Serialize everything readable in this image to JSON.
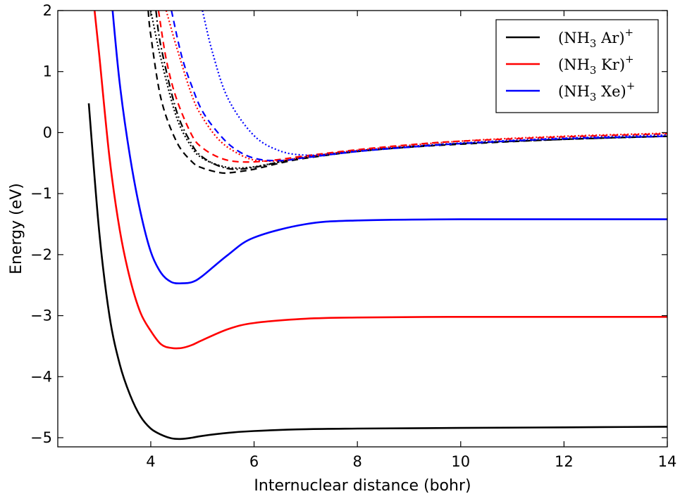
{
  "chart_data": {
    "type": "line",
    "xlabel": "Internuclear distance (bohr)",
    "ylabel": "Energy (eV)",
    "xlim": [
      2.2,
      14
    ],
    "ylim": [
      -5.15,
      2
    ],
    "x_ticks": [
      4,
      6,
      8,
      10,
      12,
      14
    ],
    "y_ticks": [
      2,
      1,
      0,
      -1,
      -2,
      -3,
      -4,
      -5
    ],
    "x_tick_labels": [
      "4",
      "6",
      "8",
      "10",
      "12",
      "14"
    ],
    "y_tick_labels": [
      "2",
      "1",
      "0",
      "−1",
      "−2",
      "−3",
      "−4",
      "−5"
    ],
    "grid": false,
    "legend_position": "top-right",
    "legend": [
      {
        "base": "(NH",
        "sub": "3",
        "mid": " Ar)",
        "sup": "+",
        "color": "#000000"
      },
      {
        "base": "(NH",
        "sub": "3",
        "mid": " Kr)",
        "sup": "+",
        "color": "#ff0000"
      },
      {
        "base": "(NH",
        "sub": "3",
        "mid": " Xe)",
        "sup": "+",
        "color": "#0000ff"
      }
    ],
    "series": [
      {
        "system": "Ar",
        "state": "solid",
        "color": "#000000",
        "dash": "",
        "x": [
          2.8,
          3.0,
          3.2,
          3.4,
          3.6,
          3.8,
          4.0,
          4.2,
          4.4,
          4.6,
          4.8,
          5.0,
          5.5,
          6.0,
          7.0,
          8.0,
          10.0,
          12.0,
          14.0
        ],
        "y": [
          0.48,
          -1.6,
          -3.0,
          -3.8,
          -4.3,
          -4.65,
          -4.85,
          -4.95,
          -5.01,
          -5.02,
          -5.0,
          -4.97,
          -4.92,
          -4.89,
          -4.86,
          -4.85,
          -4.84,
          -4.83,
          -4.82
        ]
      },
      {
        "system": "Kr",
        "state": "solid",
        "color": "#ff0000",
        "dash": "",
        "x": [
          2.9,
          3.0,
          3.2,
          3.4,
          3.6,
          3.8,
          4.0,
          4.2,
          4.4,
          4.6,
          4.8,
          5.0,
          5.5,
          6.0,
          7.0,
          8.0,
          10.0,
          12.0,
          14.0
        ],
        "y": [
          2.1,
          1.3,
          -0.4,
          -1.6,
          -2.4,
          -2.95,
          -3.25,
          -3.47,
          -3.53,
          -3.53,
          -3.48,
          -3.4,
          -3.22,
          -3.12,
          -3.05,
          -3.03,
          -3.02,
          -3.02,
          -3.02
        ]
      },
      {
        "system": "Xe",
        "state": "solid",
        "color": "#0000ff",
        "dash": "",
        "x": [
          3.25,
          3.4,
          3.6,
          3.8,
          4.0,
          4.2,
          4.4,
          4.6,
          4.8,
          5.0,
          5.5,
          6.0,
          7.0,
          8.0,
          10.0,
          12.0,
          14.0
        ],
        "y": [
          2.1,
          0.8,
          -0.4,
          -1.3,
          -1.95,
          -2.3,
          -2.45,
          -2.47,
          -2.45,
          -2.35,
          -2.0,
          -1.72,
          -1.5,
          -1.44,
          -1.42,
          -1.42,
          -1.42
        ]
      },
      {
        "system": "Ar",
        "state": "dashed",
        "color": "#000000",
        "dash": "9,6",
        "x": [
          3.95,
          4.0,
          4.2,
          4.5,
          4.8,
          5.0,
          5.3,
          5.5,
          6.0,
          6.5,
          7.0,
          8.0,
          9.0,
          10.0,
          12.0,
          14.0
        ],
        "y": [
          2.0,
          1.6,
          0.55,
          -0.15,
          -0.48,
          -0.58,
          -0.65,
          -0.66,
          -0.6,
          -0.5,
          -0.42,
          -0.31,
          -0.24,
          -0.19,
          -0.11,
          -0.06
        ]
      },
      {
        "system": "Ar",
        "state": "dashdot",
        "color": "#000000",
        "dash": "10,4,2,4",
        "x": [
          4.1,
          4.2,
          4.5,
          4.8,
          5.0,
          5.3,
          5.6,
          6.0,
          6.5,
          7.0,
          8.0,
          9.0,
          10.0,
          12.0,
          14.0
        ],
        "y": [
          2.0,
          1.4,
          0.35,
          -0.2,
          -0.4,
          -0.54,
          -0.6,
          -0.57,
          -0.48,
          -0.4,
          -0.3,
          -0.23,
          -0.18,
          -0.11,
          -0.06
        ]
      },
      {
        "system": "Ar",
        "state": "dotted",
        "color": "#000000",
        "dash": "2,3",
        "x": [
          4.0,
          4.2,
          4.5,
          4.8,
          5.0,
          5.3,
          5.6,
          6.0,
          6.5,
          7.0,
          8.0,
          10.0,
          12.0,
          14.0
        ],
        "y": [
          2.0,
          1.2,
          0.25,
          -0.25,
          -0.42,
          -0.53,
          -0.58,
          -0.56,
          -0.48,
          -0.4,
          -0.3,
          -0.18,
          -0.11,
          -0.06
        ]
      },
      {
        "system": "Kr",
        "state": "dashed",
        "color": "#ff0000",
        "dash": "9,6",
        "x": [
          4.15,
          4.3,
          4.5,
          4.8,
          5.0,
          5.3,
          5.6,
          6.0,
          6.5,
          7.0,
          8.0,
          9.0,
          10.0,
          12.0,
          14.0
        ],
        "y": [
          2.0,
          1.2,
          0.55,
          -0.05,
          -0.25,
          -0.4,
          -0.47,
          -0.48,
          -0.44,
          -0.38,
          -0.28,
          -0.2,
          -0.14,
          -0.07,
          -0.02
        ]
      },
      {
        "system": "Kr",
        "state": "dotted",
        "color": "#ff0000",
        "dash": "2,3",
        "x": [
          4.3,
          4.5,
          4.8,
          5.0,
          5.3,
          5.6,
          6.0,
          6.5,
          7.0,
          8.0,
          10.0,
          12.0,
          14.0
        ],
        "y": [
          2.0,
          1.4,
          0.6,
          0.25,
          -0.1,
          -0.3,
          -0.45,
          -0.46,
          -0.4,
          -0.29,
          -0.14,
          -0.06,
          -0.01
        ]
      },
      {
        "system": "Xe",
        "state": "dashed",
        "color": "#0000ff",
        "dash": "9,6",
        "x": [
          4.4,
          4.6,
          4.8,
          5.0,
          5.3,
          5.6,
          6.0,
          6.5,
          7.0,
          8.0,
          9.0,
          10.0,
          12.0,
          14.0
        ],
        "y": [
          2.0,
          1.25,
          0.75,
          0.35,
          0.0,
          -0.25,
          -0.42,
          -0.46,
          -0.41,
          -0.31,
          -0.24,
          -0.18,
          -0.1,
          -0.06
        ]
      },
      {
        "system": "Xe",
        "state": "dotted",
        "color": "#0000ff",
        "dash": "2,3",
        "x": [
          5.0,
          5.2,
          5.5,
          6.0,
          6.5,
          7.0,
          7.5,
          8.0,
          9.0,
          10.0,
          12.0,
          14.0
        ],
        "y": [
          2.0,
          1.3,
          0.55,
          -0.05,
          -0.3,
          -0.37,
          -0.35,
          -0.3,
          -0.23,
          -0.17,
          -0.09,
          -0.04
        ]
      }
    ]
  }
}
